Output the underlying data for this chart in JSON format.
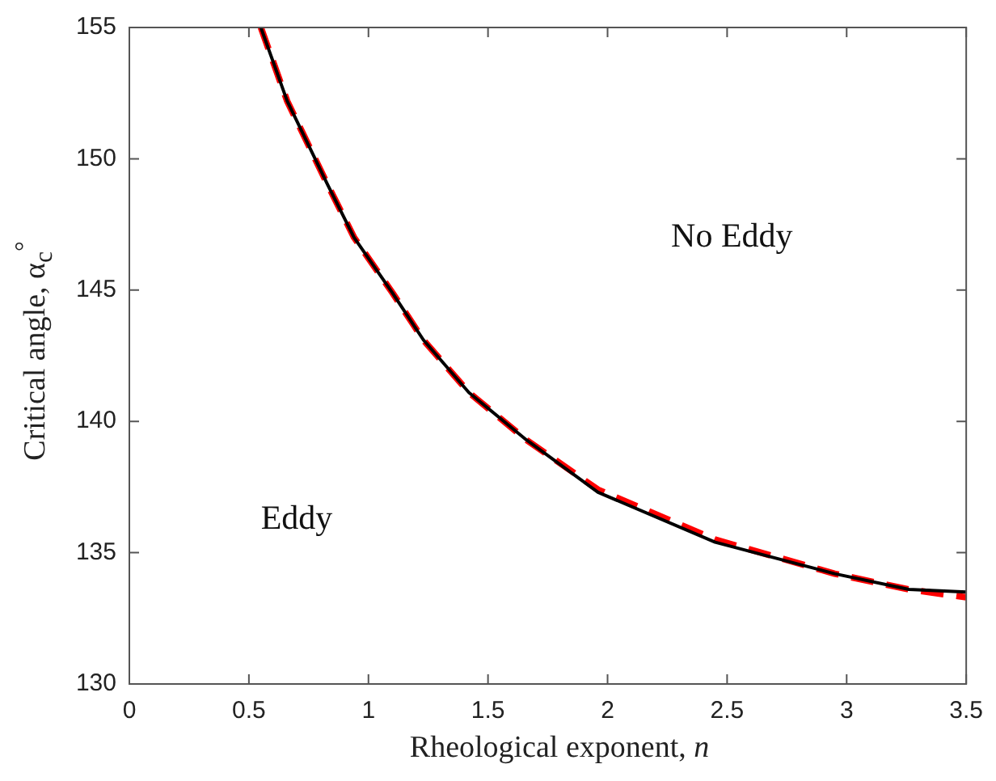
{
  "chart_data": {
    "type": "line",
    "xlabel": "Rheological exponent, n",
    "ylabel": "Critical angle, α$_{c}$$^{°}$",
    "x": [
      0.55,
      0.66,
      0.83,
      0.94,
      1.1,
      1.23,
      1.42,
      1.66,
      1.96,
      2.45,
      2.95,
      3.26,
      3.5
    ],
    "series": [
      {
        "color": "#000000",
        "line_style": "solid",
        "values": [
          155,
          152.2,
          149,
          147,
          144.9,
          143.1,
          141.1,
          139.3,
          137.3,
          135.4,
          134.2,
          133.6,
          133.5
        ]
      },
      {
        "color": "#ff0000",
        "line_style": "dashed",
        "values": [
          155,
          152.2,
          149,
          147,
          144.9,
          143.1,
          141.1,
          139.3,
          137.4,
          135.5,
          134.2,
          133.6,
          133.3
        ]
      }
    ],
    "xlim": [
      0,
      3.5
    ],
    "xticks": [
      0,
      0.5,
      1,
      1.5,
      2,
      2.5,
      3,
      3.5
    ],
    "ylim": [
      130,
      155
    ],
    "yticks": [
      130,
      135,
      140,
      145,
      150,
      155
    ],
    "grid": false,
    "legend": false,
    "marker": "none",
    "annotations": [
      "No Eddy",
      "Eddy"
    ]
  }
}
